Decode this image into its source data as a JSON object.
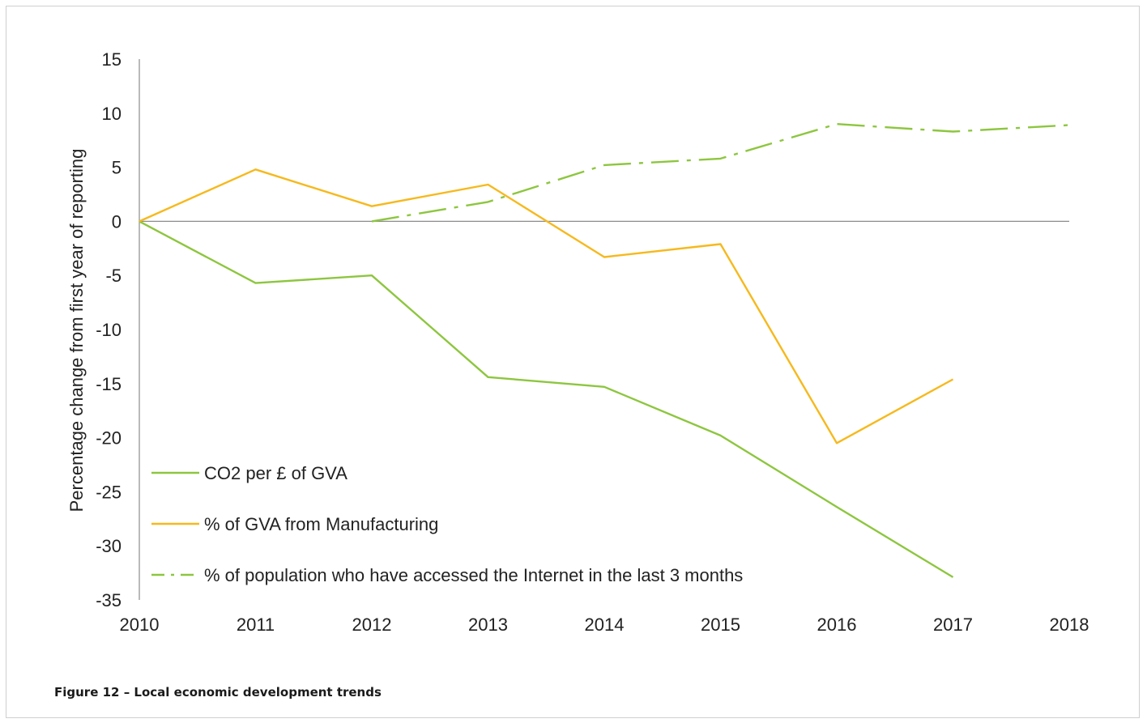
{
  "caption": "Figure 12 – Local economic development trends",
  "chart_data": {
    "type": "line",
    "title": "",
    "xlabel": "",
    "ylabel": "Percentage change from first year of reporting",
    "x": [
      "2010",
      "2011",
      "2012",
      "2013",
      "2014",
      "2015",
      "2016",
      "2017",
      "2018"
    ],
    "ylim": [
      -35,
      15
    ],
    "yticks": [
      15,
      10,
      5,
      0,
      -5,
      -10,
      -15,
      -20,
      -25,
      -30,
      -35
    ],
    "grid": false,
    "legend_placement": "bottom-left",
    "series": [
      {
        "name": "CO2 per £ of GVA",
        "color": "#8dc63f",
        "style": "solid",
        "values": [
          0,
          -5.7,
          -5.0,
          -14.4,
          -15.3,
          -19.8,
          -26.4,
          -32.9,
          null
        ]
      },
      {
        "name": "% of GVA from Manufacturing",
        "color": "#f6b91d",
        "style": "solid",
        "values": [
          0,
          4.8,
          1.4,
          3.4,
          -3.3,
          -2.1,
          -20.5,
          -14.6,
          null
        ]
      },
      {
        "name": "% of population who have accessed the Internet in the last 3 months",
        "color": "#8dc63f",
        "style": "dashdot",
        "values": [
          null,
          null,
          0,
          1.8,
          5.2,
          5.8,
          9.0,
          8.3,
          8.9
        ]
      }
    ]
  }
}
